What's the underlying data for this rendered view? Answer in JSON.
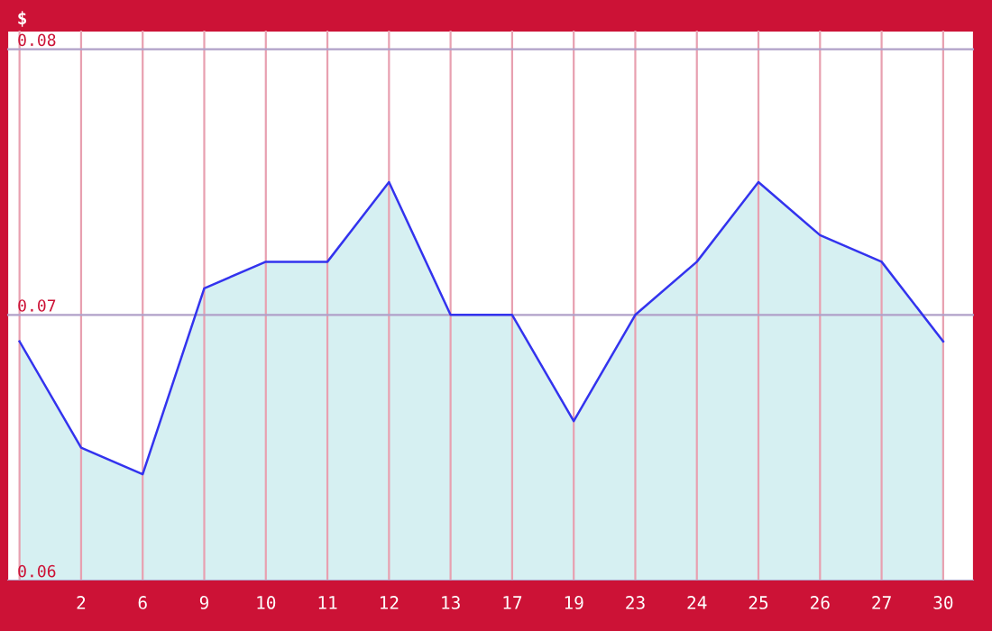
{
  "chart_data": {
    "type": "area",
    "ylabel": "$",
    "categories": [
      null,
      "2",
      "6",
      "9",
      "10",
      "11",
      "12",
      "13",
      "17",
      "19",
      "23",
      "24",
      "25",
      "26",
      "27",
      "30"
    ],
    "series": [
      {
        "color": "#3333ee",
        "values": [
          0.069,
          0.065,
          0.064,
          0.071,
          0.072,
          0.072,
          0.075,
          0.07,
          0.07,
          0.066,
          0.07,
          0.072,
          0.075,
          0.073,
          0.072,
          0.069
        ]
      }
    ],
    "ylim": [
      0.06,
      0.0807
    ],
    "yticks": [
      {
        "value": 0.06,
        "label": "0.06"
      },
      {
        "value": 0.07,
        "label": "0.07"
      },
      {
        "value": 0.08,
        "label": "0.08"
      }
    ],
    "grid": true,
    "marker": "none",
    "line_style": "solid"
  }
}
